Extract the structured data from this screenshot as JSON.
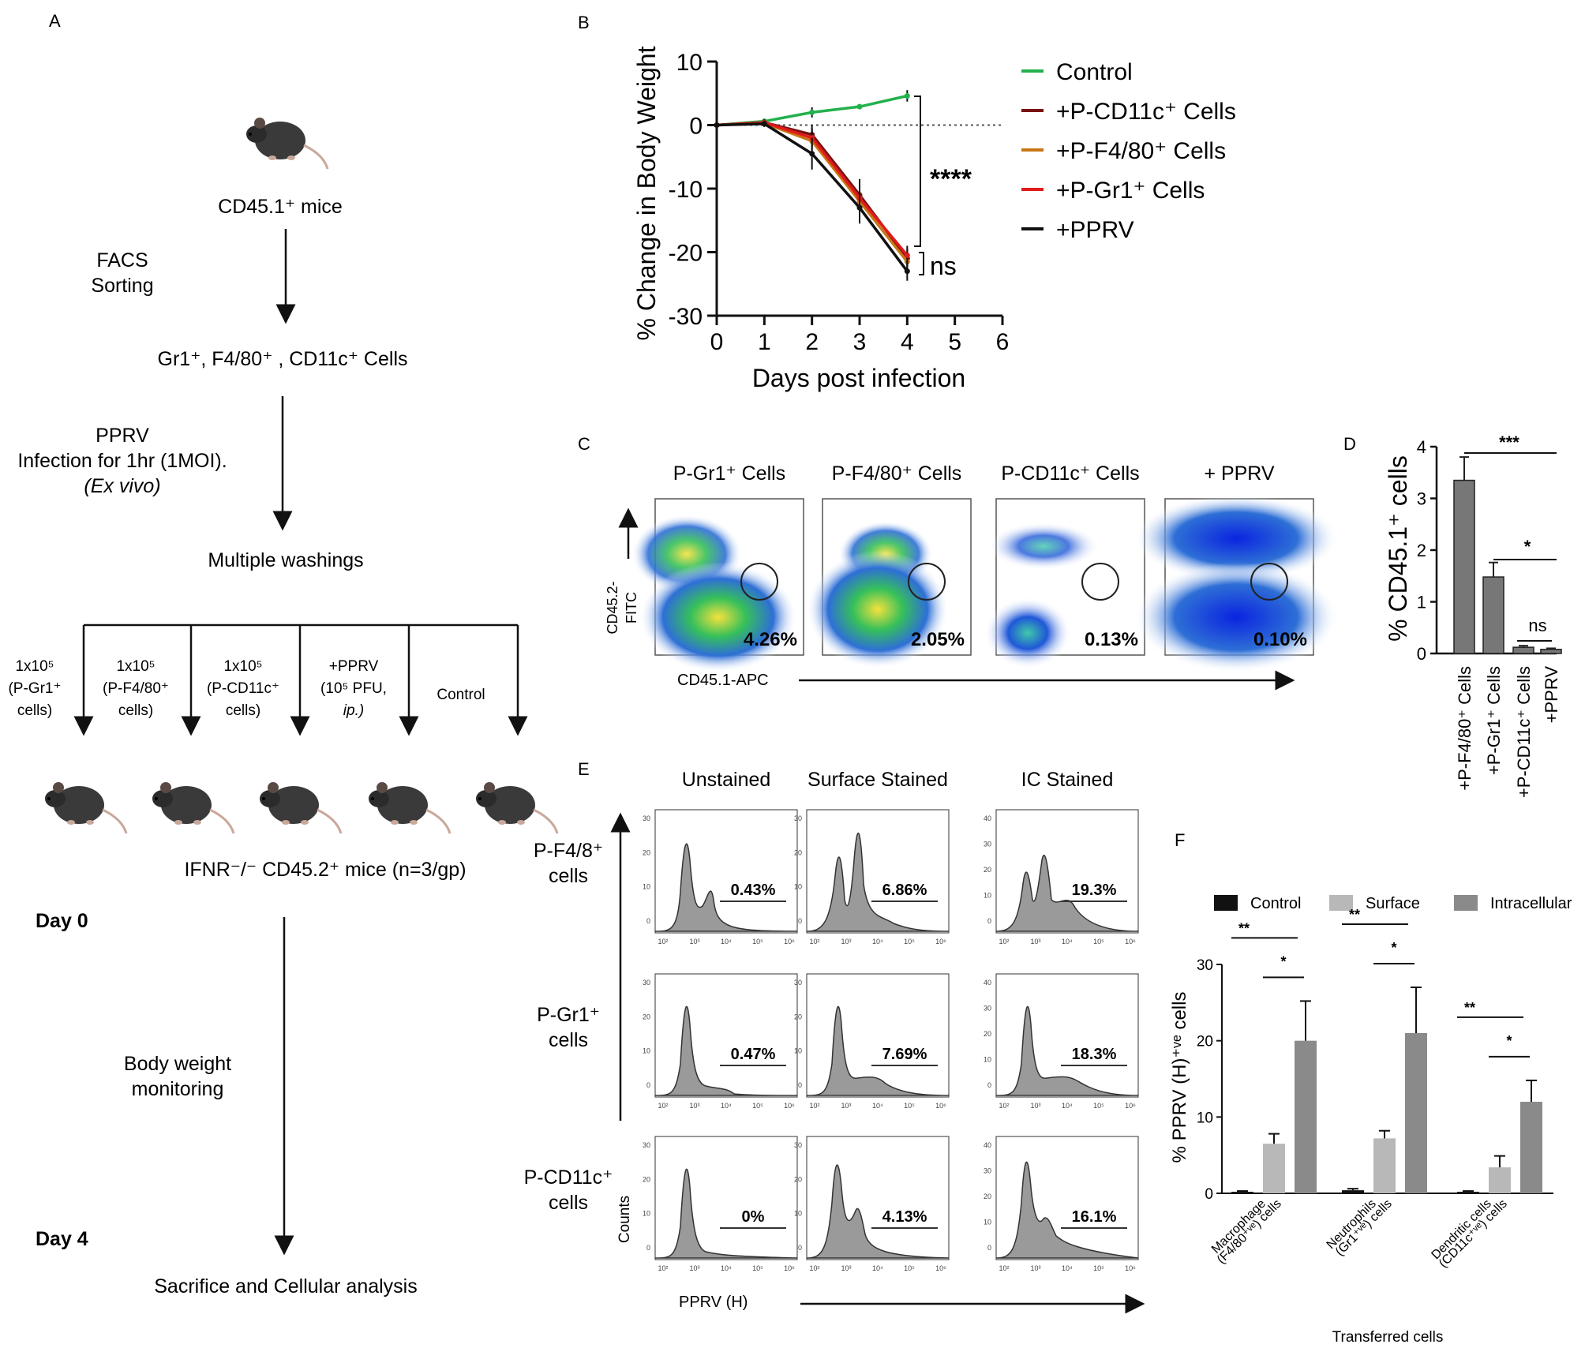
{
  "panels": {
    "a": "A",
    "b": "B",
    "c": "C",
    "d": "D",
    "e": "E",
    "f": "F"
  },
  "panelA": {
    "donor": "CD45.1⁺  mice",
    "sort1": "FACS",
    "sort2": "Sorting",
    "cells": "Gr1⁺, F4/80⁺ , CD11c⁺ Cells",
    "inf1": "PPRV",
    "inf2": "Infection for 1hr (1MOI).",
    "inf3": "(Ex vivo)",
    "wash": "Multiple washings",
    "groups": [
      {
        "l1": "1x10⁵",
        "l2": "(P-Gr1⁺",
        "l3": "cells)"
      },
      {
        "l1": "1x10⁵",
        "l2": "(P-F4/80⁺",
        "l3": "cells)"
      },
      {
        "l1": "1x10⁵",
        "l2": "(P-CD11c⁺",
        "l3": "cells)"
      },
      {
        "l1": "+PPRV",
        "l2": "(10⁵ PFU,",
        "l3": "ip.)"
      },
      {
        "l1": "Control",
        "l2": "",
        "l3": ""
      }
    ],
    "recipients": "IFNR⁻/⁻ CD45.2⁺  mice (n=3/gp)",
    "day0": "Day 0",
    "monitor1": "Body weight",
    "monitor2": "monitoring",
    "day4": "Day 4",
    "final": "Sacrifice and Cellular analysis"
  },
  "chart_data": [
    {
      "id": "B",
      "type": "line",
      "ylabel": "% Change in Body Weight",
      "xlabel": "Days post infection",
      "ylim": [
        -30,
        10
      ],
      "xlim": [
        0,
        6
      ],
      "yticks": [
        "10",
        "0",
        "-10",
        "-20",
        "-30"
      ],
      "xticks": [
        "0",
        "1",
        "2",
        "3",
        "4",
        "5",
        "6"
      ],
      "baseline": 0,
      "series": [
        {
          "name": "Control",
          "color": "#22b14c",
          "x": [
            0,
            1,
            2,
            3,
            4
          ],
          "y": [
            0,
            0.6,
            2,
            2.9,
            4.6
          ],
          "err": [
            0,
            0.3,
            0.8,
            0.4,
            0.9
          ]
        },
        {
          "name": "+P-CD11c⁺ Cells",
          "color": "#7a1010",
          "x": [
            0,
            1,
            2,
            3,
            4
          ],
          "y": [
            0,
            0.4,
            -1.5,
            -11,
            -21
          ],
          "err": [
            0,
            0.5,
            1.5,
            2.5,
            1.5
          ]
        },
        {
          "name": "+P-F4/80⁺ Cells",
          "color": "#c87514",
          "x": [
            0,
            1,
            2,
            3,
            4
          ],
          "y": [
            0,
            0.3,
            -2.5,
            -12,
            -21.5
          ],
          "err": [
            0,
            0.5,
            1.5,
            2.5,
            1.5
          ]
        },
        {
          "name": "+P-Gr1⁺ Cells",
          "color": "#e01b1b",
          "x": [
            0,
            1,
            2,
            3,
            4
          ],
          "y": [
            0,
            0.4,
            -2,
            -11.5,
            -20.5
          ],
          "err": [
            0,
            0.5,
            1.5,
            2.5,
            1.5
          ]
        },
        {
          "name": "+PPRV",
          "color": "#111111",
          "x": [
            0,
            1,
            2,
            3,
            4
          ],
          "y": [
            0,
            0.2,
            -4.5,
            -13,
            -23
          ],
          "err": [
            0,
            0.5,
            2.5,
            2.5,
            1.5
          ]
        }
      ],
      "annotations": {
        "sig1": "****",
        "sig2": "ns"
      }
    },
    {
      "id": "D",
      "type": "bar",
      "ylabel": "% CD45.1⁺ cells",
      "ylim": [
        0,
        4
      ],
      "yticks": [
        "4",
        "3",
        "2",
        "1",
        "0"
      ],
      "categories": [
        "+P-F4/80⁺ Cells",
        "+P-Gr1⁺ Cells",
        "+P-CD11c⁺ Cells",
        "+PPRV"
      ],
      "values": [
        3.35,
        1.48,
        0.12,
        0.08
      ],
      "err": [
        0.45,
        0.28,
        0.03,
        0.02
      ],
      "annotations": {
        "sig1": "***",
        "sig2": "*",
        "sig3": "ns"
      }
    },
    {
      "id": "F",
      "type": "bar",
      "ylabel": "% PPRV (H)⁺ᵛᵉ cells",
      "xlabel": "Transferred cells",
      "ylim": [
        0,
        30
      ],
      "yticks": [
        "30",
        "20",
        "10",
        "0"
      ],
      "categories": [
        {
          "l1": "Macrophage",
          "l2": "(F4/80⁺ᵛᵉ) cells"
        },
        {
          "l1": "Neutrophils",
          "l2": "(Gr1⁺ᵛᵉ) cells"
        },
        {
          "l1": "Dendritic cells",
          "l2": "(CD11c⁺ᵛᵉ) cells"
        }
      ],
      "series": [
        {
          "name": "Control",
          "color": "#111111",
          "values": [
            0.2,
            0.4,
            0.2
          ],
          "err": [
            0.1,
            0.2,
            0.1
          ]
        },
        {
          "name": "Surface",
          "color": "#b8b8b8",
          "values": [
            6.5,
            7.2,
            3.4
          ],
          "err": [
            1.3,
            1.0,
            1.5
          ]
        },
        {
          "name": "Intracellular",
          "color": "#8a8a8a",
          "values": [
            20,
            21,
            12
          ],
          "err": [
            5.2,
            6.0,
            2.8
          ]
        }
      ],
      "annotations": {
        "sig1": "**",
        "sig2": "*"
      }
    }
  ],
  "panelC": {
    "titles": [
      "P-Gr1⁺ Cells",
      "P-F4/80⁺ Cells",
      "P-CD11c⁺ Cells",
      "+ PPRV"
    ],
    "percents": [
      "4.26%",
      "2.05%",
      "0.13%",
      "0.10%"
    ],
    "yaxis1": "CD45.2-",
    "yaxis2": "FITC",
    "xaxis": "CD45.1-APC"
  },
  "panelE": {
    "cols": [
      "Unstained",
      "Surface Stained",
      "IC Stained"
    ],
    "rows": [
      {
        "l1": "P-F4/8⁺",
        "l2": "cells"
      },
      {
        "l1": "P-Gr1⁺",
        "l2": "cells"
      },
      {
        "l1": "P-CD11c⁺",
        "l2": "cells"
      }
    ],
    "percents": [
      [
        "0.43%",
        "6.86%",
        "19.3%"
      ],
      [
        "0.47%",
        "7.69%",
        "18.3%"
      ],
      [
        "0%",
        "4.13%",
        "16.1%"
      ]
    ],
    "xaxis": "PPRV (H)",
    "yaxis": "Counts"
  }
}
